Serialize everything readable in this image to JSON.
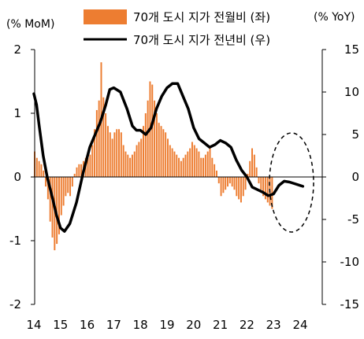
{
  "chart_data": {
    "type": "bar+line",
    "left_axis_unit": "(% MoM)",
    "right_axis_unit": "(% YoY)",
    "left_ylim": [
      -2,
      2
    ],
    "left_ticks": [
      "2",
      "1",
      "0",
      "-1",
      "-2"
    ],
    "right_ylim": [
      -15,
      15
    ],
    "right_ticks": [
      "15",
      "10",
      "5",
      "0",
      "-5",
      "-10",
      "-15"
    ],
    "x_ticks": [
      "14",
      "15",
      "16",
      "17",
      "18",
      "19",
      "20",
      "21",
      "22",
      "23",
      "24"
    ],
    "x_range": [
      2014.0,
      2024.25
    ],
    "legend": [
      {
        "label": "70개 도시 지가 전월비 (좌)",
        "kind": "bar",
        "color": "#ED7D31"
      },
      {
        "label": "70개 도시 지가 전년비 (우)",
        "kind": "line",
        "color": "#000000"
      }
    ],
    "annotation": "dashed-ellipse-2023-2024",
    "colors": {
      "bar": "#ED7D31",
      "line": "#000000",
      "axis": "#000000"
    },
    "series": [
      {
        "name": "70개 도시 지가 전월비 (좌)",
        "axis": "left",
        "kind": "bar",
        "start": 2014.0,
        "step": 0.0833333,
        "values": [
          0.4,
          0.3,
          0.25,
          0.2,
          0.1,
          -0.15,
          -0.35,
          -0.7,
          -0.95,
          -1.15,
          -1.05,
          -0.9,
          -0.6,
          -0.45,
          -0.3,
          -0.25,
          -0.3,
          -0.15,
          0.05,
          0.15,
          0.2,
          0.2,
          0.25,
          0.3,
          0.3,
          0.35,
          0.5,
          0.75,
          1.05,
          1.2,
          1.8,
          1.25,
          1.0,
          0.8,
          0.7,
          0.6,
          0.7,
          0.75,
          0.75,
          0.7,
          0.5,
          0.4,
          0.35,
          0.3,
          0.35,
          0.4,
          0.5,
          0.55,
          0.6,
          0.8,
          1.0,
          1.2,
          1.5,
          1.45,
          1.2,
          1.0,
          0.85,
          0.8,
          0.75,
          0.7,
          0.6,
          0.5,
          0.45,
          0.4,
          0.35,
          0.3,
          0.25,
          0.3,
          0.35,
          0.4,
          0.45,
          0.55,
          0.5,
          0.45,
          0.4,
          0.3,
          0.3,
          0.35,
          0.4,
          0.45,
          0.3,
          0.2,
          0.1,
          -0.1,
          -0.3,
          -0.25,
          -0.2,
          -0.15,
          -0.1,
          -0.15,
          -0.2,
          -0.3,
          -0.35,
          -0.4,
          -0.3,
          -0.2,
          0.05,
          0.25,
          0.45,
          0.35,
          0.15,
          -0.1,
          -0.2,
          -0.3,
          -0.35,
          -0.4,
          -0.45,
          -0.5
        ]
      },
      {
        "name": "70개 도시 지가 전년비 (우)",
        "axis": "right",
        "kind": "line",
        "points": [
          [
            2014.0,
            9.8
          ],
          [
            2014.1,
            8.5
          ],
          [
            2014.2,
            6.0
          ],
          [
            2014.35,
            2.5
          ],
          [
            2014.5,
            0.0
          ],
          [
            2014.7,
            -2.5
          ],
          [
            2014.85,
            -4.5
          ],
          [
            2015.0,
            -6.0
          ],
          [
            2015.15,
            -6.4
          ],
          [
            2015.35,
            -5.5
          ],
          [
            2015.6,
            -3.0
          ],
          [
            2015.85,
            0.5
          ],
          [
            2016.1,
            3.5
          ],
          [
            2016.3,
            5.0
          ],
          [
            2016.5,
            6.5
          ],
          [
            2016.7,
            8.5
          ],
          [
            2016.85,
            10.3
          ],
          [
            2017.0,
            10.5
          ],
          [
            2017.25,
            10.0
          ],
          [
            2017.5,
            8.0
          ],
          [
            2017.7,
            6.0
          ],
          [
            2017.85,
            5.5
          ],
          [
            2018.0,
            5.5
          ],
          [
            2018.2,
            5.0
          ],
          [
            2018.4,
            5.8
          ],
          [
            2018.6,
            8.0
          ],
          [
            2018.8,
            9.5
          ],
          [
            2019.0,
            10.5
          ],
          [
            2019.2,
            11.0
          ],
          [
            2019.4,
            11.0
          ],
          [
            2019.6,
            9.5
          ],
          [
            2019.8,
            8.0
          ],
          [
            2020.0,
            5.8
          ],
          [
            2020.2,
            4.5
          ],
          [
            2020.4,
            4.0
          ],
          [
            2020.6,
            3.5
          ],
          [
            2020.8,
            3.8
          ],
          [
            2021.0,
            4.3
          ],
          [
            2021.2,
            4.0
          ],
          [
            2021.4,
            3.5
          ],
          [
            2021.6,
            2.0
          ],
          [
            2021.8,
            0.8
          ],
          [
            2022.0,
            0.0
          ],
          [
            2022.2,
            -1.2
          ],
          [
            2022.4,
            -1.5
          ],
          [
            2022.6,
            -1.8
          ],
          [
            2022.8,
            -2.2
          ],
          [
            2023.0,
            -2.0
          ],
          [
            2023.2,
            -1.0
          ],
          [
            2023.4,
            -0.5
          ],
          [
            2023.6,
            -0.6
          ],
          [
            2023.8,
            -0.8
          ],
          [
            2024.0,
            -1.0
          ],
          [
            2024.1,
            -1.1
          ]
        ]
      }
    ]
  }
}
